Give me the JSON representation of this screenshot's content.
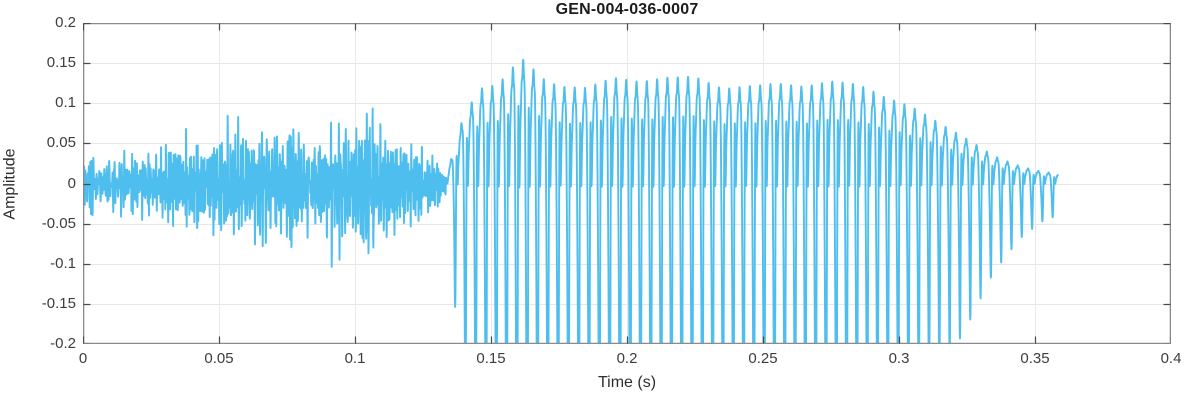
{
  "chart_data": {
    "type": "line",
    "title": "GEN-004-036-0007",
    "xlabel": "Time (s)",
    "ylabel": "Amplitude",
    "xlim": [
      0,
      0.4
    ],
    "ylim": [
      -0.2,
      0.2
    ],
    "xticks": [
      0,
      0.05,
      0.1,
      0.15,
      0.2,
      0.25,
      0.3,
      0.35,
      0.4
    ],
    "xtick_labels": [
      "0",
      "0.05",
      "0.1",
      "0.15",
      "0.2",
      "0.25",
      "0.3",
      "0.35",
      "0.4"
    ],
    "yticks": [
      -0.2,
      -0.15,
      -0.1,
      -0.05,
      0,
      0.05,
      0.1,
      0.15,
      0.2
    ],
    "ytick_labels": [
      "-0.2",
      "-0.15",
      "-0.1",
      "-0.05",
      "0",
      "0.05",
      "0.1",
      "0.15",
      "0.2"
    ],
    "grid": true,
    "legend": "none",
    "line_color": "#4DBEEE",
    "grid_color": "#e7e7e7",
    "axis_color": "#8b8b8b",
    "tick_color": "#4a4a4a",
    "text_color": "#3d3d3d",
    "signal": {
      "description": "Speech waveform: broadband noise-like (unvoiced) segment from 0 to 0.133 s peaking near +/-0.15 around 0.08 s, then quasi-periodic voiced segment from 0.134 to 0.3585 s (f0 ~264 Hz) with max +0.163 / min -0.175 near 0.16 s, sustained ~+/-0.13 until ~0.29 s, decaying to ~0 by 0.358 s; silence from 0.358 to 0.4 s",
      "sample_rate": 16000,
      "end_time": 0.3585,
      "noise_segment": {
        "t_start": 0.0,
        "t_end": 0.1335,
        "seed": 1337,
        "n_components": 16,
        "freq_range_hz": [
          500,
          3400
        ],
        "n_mod_components": 5,
        "mod_freq_range_hz": [
          20,
          90
        ],
        "neg_gain": 1.12,
        "envelope_t": [
          0.0,
          0.004,
          0.01,
          0.016,
          0.024,
          0.032,
          0.04,
          0.048,
          0.056,
          0.064,
          0.072,
          0.08,
          0.088,
          0.094,
          0.1,
          0.106,
          0.112,
          0.118,
          0.124,
          0.128,
          0.131,
          0.1335
        ],
        "envelope_a": [
          0.05,
          0.078,
          0.062,
          0.078,
          0.085,
          0.1,
          0.122,
          0.128,
          0.133,
          0.144,
          0.155,
          0.163,
          0.15,
          0.163,
          0.138,
          0.127,
          0.111,
          0.105,
          0.094,
          0.083,
          0.061,
          0.022
        ]
      },
      "voiced_segment": {
        "t_start": 0.134,
        "t_end": 0.3585,
        "f0_hz": 264,
        "harmonic_amps": [
          1.0,
          0.58,
          0.42,
          0.27,
          0.15,
          0.08
        ],
        "harmonic_phases": [
          0.0,
          2.1,
          3.7,
          4.9,
          5.9,
          0.8
        ],
        "shimmer_rate_hz": 9.7,
        "shimmer_depth": 0.055,
        "neg_gain": 1.09,
        "envelope_t": [
          0.134,
          0.14,
          0.146,
          0.152,
          0.157,
          0.16,
          0.163,
          0.168,
          0.175,
          0.185,
          0.195,
          0.205,
          0.215,
          0.225,
          0.235,
          0.245,
          0.255,
          0.265,
          0.275,
          0.285,
          0.295,
          0.305,
          0.315,
          0.325,
          0.335,
          0.345,
          0.352,
          0.3585
        ],
        "envelope_a": [
          0.015,
          0.09,
          0.125,
          0.13,
          0.145,
          0.163,
          0.158,
          0.135,
          0.12,
          0.115,
          0.125,
          0.12,
          0.128,
          0.133,
          0.122,
          0.128,
          0.132,
          0.125,
          0.128,
          0.12,
          0.102,
          0.09,
          0.072,
          0.055,
          0.035,
          0.022,
          0.016,
          0.013
        ]
      }
    }
  }
}
